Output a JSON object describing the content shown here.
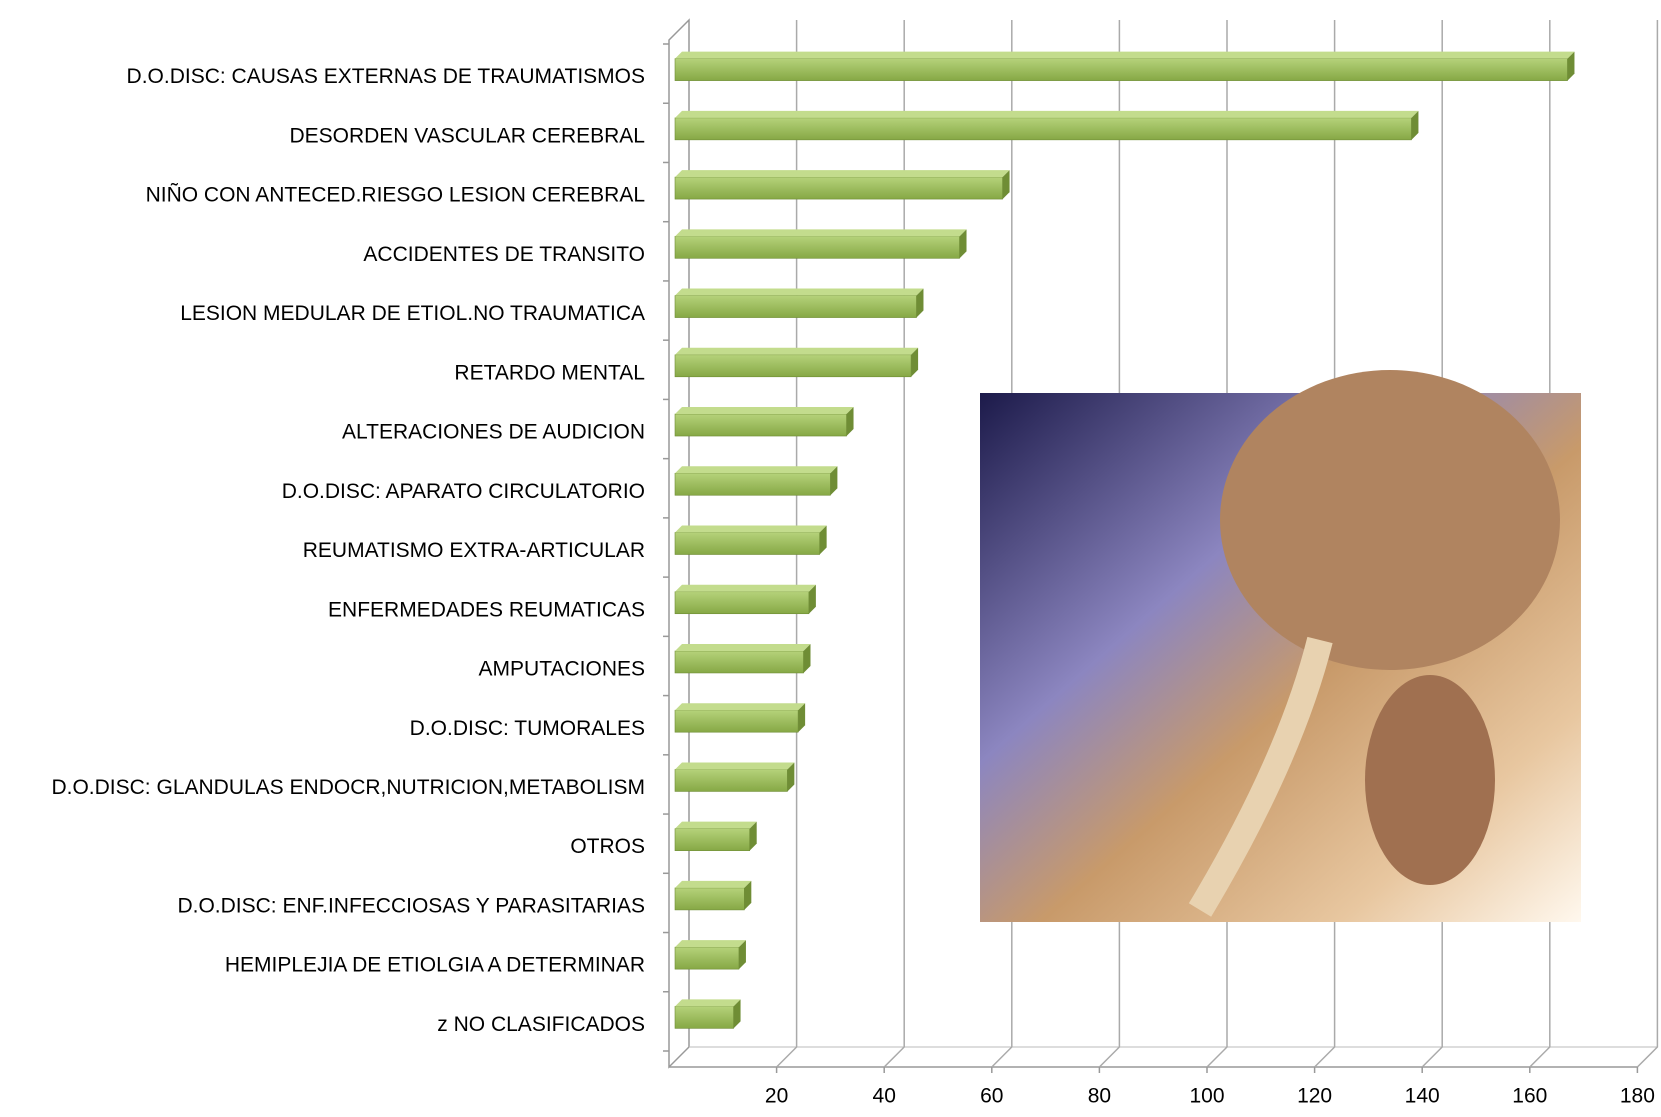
{
  "chart_data": {
    "type": "bar3d_horizontal",
    "categories": [
      "D.O.DISC: CAUSAS EXTERNAS DE TRAUMATISMOS",
      "DESORDEN VASCULAR CEREBRAL",
      "NIÑO CON ANTECED.RIESGO LESION CEREBRAL",
      "ACCIDENTES DE TRANSITO",
      "LESION MEDULAR DE ETIOL.NO TRAUMATICA",
      "RETARDO MENTAL",
      "ALTERACIONES DE AUDICION",
      "D.O.DISC: APARATO CIRCULATORIO",
      "REUMATISMO EXTRA-ARTICULAR",
      "ENFERMEDADES REUMATICAS",
      "AMPUTACIONES",
      "D.O.DISC: TUMORALES",
      "D.O.DISC: GLANDULAS ENDOCR,NUTRICION,METABOLISM",
      "OTROS",
      "D.O.DISC: ENF.INFECCIOSAS Y PARASITARIAS",
      "HEMIPLEJIA DE ETIOLGIA A DETERMINAR",
      "z NO CLASIFICADOS"
    ],
    "values": [
      167,
      138,
      62,
      54,
      46,
      45,
      33,
      30,
      28,
      26,
      25,
      24,
      22,
      15,
      14,
      13,
      12
    ],
    "color": "#9bbb59",
    "xlim": [
      0,
      180
    ],
    "xticks": [
      20,
      40,
      60,
      80,
      100,
      120,
      140,
      160,
      180
    ],
    "grid": true
  }
}
